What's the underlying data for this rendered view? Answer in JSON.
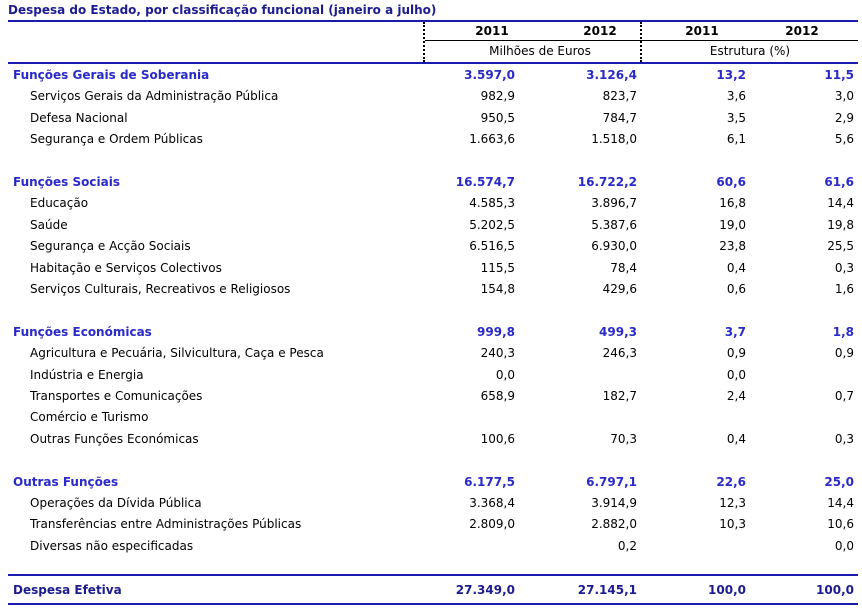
{
  "title": "Despesa do Estado, por classificação funcional (janeiro a julho)",
  "header": {
    "years": [
      "2011",
      "2012",
      "2011",
      "2012"
    ],
    "unit_left": "Milhões de Euros",
    "unit_right": "Estrutura (%)"
  },
  "rows": [
    {
      "type": "cat",
      "label": "Funções Gerais de Soberania",
      "v": [
        "3.597,0",
        "3.126,4",
        "13,2",
        "11,5"
      ]
    },
    {
      "type": "sub",
      "label": "Serviços Gerais da Administração Pública",
      "v": [
        "982,9",
        "823,7",
        "3,6",
        "3,0"
      ]
    },
    {
      "type": "sub",
      "label": "Defesa Nacional",
      "v": [
        "950,5",
        "784,7",
        "3,5",
        "2,9"
      ]
    },
    {
      "type": "sub",
      "label": "Segurança e Ordem Públicas",
      "v": [
        "1.663,6",
        "1.518,0",
        "6,1",
        "5,6"
      ]
    },
    {
      "type": "cat",
      "label": "Funções Sociais",
      "v": [
        "16.574,7",
        "16.722,2",
        "60,6",
        "61,6"
      ]
    },
    {
      "type": "sub",
      "label": "Educação",
      "v": [
        "4.585,3",
        "3.896,7",
        "16,8",
        "14,4"
      ]
    },
    {
      "type": "sub",
      "label": "Saúde",
      "v": [
        "5.202,5",
        "5.387,6",
        "19,0",
        "19,8"
      ]
    },
    {
      "type": "sub",
      "label": "Segurança e Acção Sociais",
      "v": [
        "6.516,5",
        "6.930,0",
        "23,8",
        "25,5"
      ]
    },
    {
      "type": "sub",
      "label": "Habitação e Serviços Colectivos",
      "v": [
        "115,5",
        "78,4",
        "0,4",
        "0,3"
      ]
    },
    {
      "type": "sub",
      "label": "Serviços Culturais, Recreativos e Religiosos",
      "v": [
        "154,8",
        "429,6",
        "0,6",
        "1,6"
      ]
    },
    {
      "type": "cat",
      "label": "Funções Económicas",
      "v": [
        "999,8",
        "499,3",
        "3,7",
        "1,8"
      ]
    },
    {
      "type": "sub",
      "label": "Agricultura e Pecuária, Silvicultura, Caça e Pesca",
      "v": [
        "240,3",
        "246,3",
        "0,9",
        "0,9"
      ]
    },
    {
      "type": "sub",
      "label": "Indústria e Energia",
      "v": [
        "0,0",
        "",
        "0,0",
        ""
      ]
    },
    {
      "type": "sub",
      "label": "Transportes e Comunicações",
      "v": [
        "658,9",
        "182,7",
        "2,4",
        "0,7"
      ]
    },
    {
      "type": "sub",
      "label": "Comércio e Turismo",
      "v": [
        "",
        "",
        "",
        ""
      ]
    },
    {
      "type": "sub",
      "label": "Outras Funções Económicas",
      "v": [
        "100,6",
        "70,3",
        "0,4",
        "0,3"
      ]
    },
    {
      "type": "cat",
      "label": "Outras Funções",
      "v": [
        "6.177,5",
        "6.797,1",
        "22,6",
        "25,0"
      ]
    },
    {
      "type": "sub",
      "label": "Operações da Dívida Pública",
      "v": [
        "3.368,4",
        "3.914,9",
        "12,3",
        "14,4"
      ]
    },
    {
      "type": "sub",
      "label": "Transferências entre Administrações Públicas",
      "v": [
        "2.809,0",
        "2.882,0",
        "10,3",
        "10,6"
      ]
    },
    {
      "type": "sub",
      "label": "Diversas não especificadas",
      "v": [
        "",
        "0,2",
        "",
        "0,0"
      ]
    }
  ],
  "total": {
    "label": "Despesa Efetiva",
    "v": [
      "27.349,0",
      "27.145,1",
      "100,0",
      "100,0"
    ]
  }
}
